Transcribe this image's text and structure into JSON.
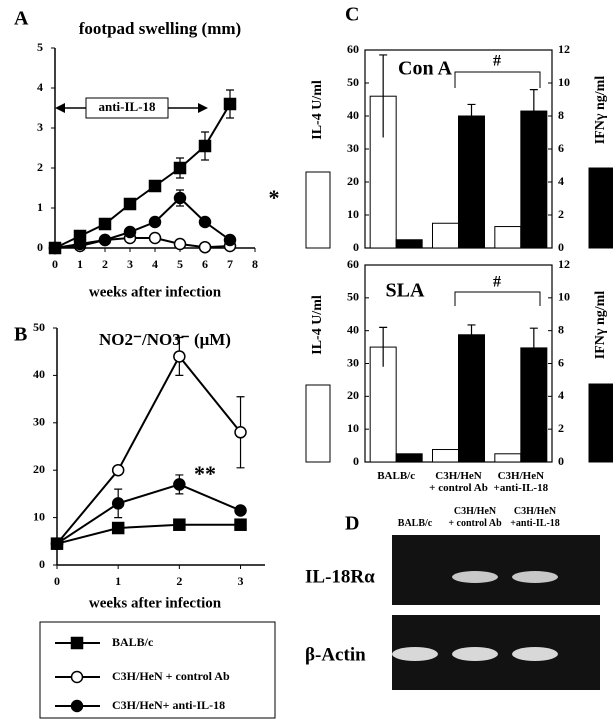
{
  "chart_data": [
    {
      "type": "line",
      "panel": "A",
      "title": "footpad swelling  (mm)",
      "xlabel": "weeks after infection",
      "x": [
        0,
        1,
        2,
        3,
        4,
        5,
        6,
        7
      ],
      "xlim": [
        0,
        8
      ],
      "xticks": [
        0,
        1,
        2,
        3,
        4,
        5,
        6,
        7,
        8
      ],
      "ylim": [
        0,
        5
      ],
      "yticks": [
        0,
        1,
        2,
        3,
        4,
        5
      ],
      "series": [
        {
          "name": "BALB/c",
          "marker": "square",
          "color": "#000000",
          "marker_fill": "#000000",
          "values": [
            0,
            0.3,
            0.6,
            1.1,
            1.55,
            2.0,
            2.55,
            3.6
          ],
          "errors": [
            null,
            null,
            null,
            null,
            null,
            0.25,
            0.35,
            0.35
          ]
        },
        {
          "name": "C3H/HeN + control Ab",
          "marker": "circle",
          "color": "#000000",
          "marker_fill": "#ffffff",
          "values": [
            0,
            0.05,
            0.2,
            0.25,
            0.25,
            0.1,
            0.02,
            0.05
          ]
        },
        {
          "name": "C3H/HeN+ anti-IL-18",
          "marker": "circle",
          "color": "#000000",
          "marker_fill": "#000000",
          "values": [
            0,
            0.1,
            0.2,
            0.4,
            0.65,
            1.25,
            0.65,
            0.2
          ],
          "errors": [
            null,
            null,
            null,
            null,
            null,
            0.2,
            null,
            null
          ]
        }
      ],
      "annotations": [
        "anti-IL-18",
        "*"
      ]
    },
    {
      "type": "line",
      "panel": "B",
      "title": "NO2⁻/NO3⁻ (μM)",
      "xlabel": "weeks after infection",
      "x": [
        0,
        1,
        2,
        3
      ],
      "xlim": [
        0,
        3.4
      ],
      "xticks": [
        0,
        1,
        2,
        3
      ],
      "ylim": [
        0,
        50
      ],
      "yticks": [
        0,
        10,
        20,
        30,
        40,
        50
      ],
      "series": [
        {
          "marker": "square",
          "color": "#000000",
          "marker_fill": "#000000",
          "values": [
            4.5,
            7.8,
            8.5,
            8.5
          ]
        },
        {
          "marker": "circle",
          "color": "#000000",
          "marker_fill": "#ffffff",
          "values": [
            4.5,
            20,
            44,
            28
          ],
          "errors": [
            null,
            null,
            4,
            7.5
          ]
        },
        {
          "marker": "circle",
          "color": "#000000",
          "marker_fill": "#000000",
          "values": [
            4.5,
            13,
            17,
            11.5
          ],
          "errors": [
            null,
            3,
            2,
            null
          ]
        }
      ],
      "annotations": [
        "**"
      ]
    },
    {
      "type": "bar",
      "panel": "C",
      "categories": [
        null,
        null,
        null
      ],
      "ylim": [
        0,
        60
      ],
      "yticks": [
        0,
        10,
        20,
        30,
        40,
        50,
        60
      ],
      "y2lim": [
        0,
        12
      ],
      "y2ticks": [
        0,
        2,
        4,
        6,
        8,
        10,
        12
      ],
      "series": [
        {
          "name": "IL-4 U/ml",
          "color": "#ffffff",
          "values": [
            46,
            7.5,
            6.5
          ],
          "errors": [
            12.5,
            null,
            null
          ]
        },
        {
          "name": "IFNγ ng/ml",
          "color": "#000000",
          "axis": "y2",
          "values": [
            0.5,
            8,
            8.3
          ],
          "errors": [
            null,
            0.7,
            1.3
          ]
        }
      ],
      "annotations": [
        "Con A",
        "#"
      ]
    },
    {
      "type": "bar",
      "categories": [
        "BALB/c",
        "C3H/HeN\n+ control Ab",
        "C3H/HeN\n+anti-IL-18"
      ],
      "ylim": [
        0,
        60
      ],
      "yticks": [
        0,
        10,
        20,
        30,
        40,
        50,
        60
      ],
      "y2lim": [
        0,
        12
      ],
      "y2ticks": [
        0,
        2,
        4,
        6,
        8,
        10,
        12
      ],
      "series": [
        {
          "name": "IL-4 U/ml",
          "color": "#ffffff",
          "values": [
            35,
            3.8,
            2.5
          ],
          "errors": [
            6,
            null,
            null
          ]
        },
        {
          "name": "IFNγ ng/ml",
          "color": "#000000",
          "axis": "y2",
          "values": [
            0.5,
            7.75,
            6.95
          ],
          "errors": [
            null,
            0.6,
            1.2
          ]
        }
      ],
      "annotations": [
        "SLA",
        "#"
      ]
    }
  ],
  "gel": {
    "panel": "D",
    "lanes": [
      "BALB/c",
      "C3H/HeN\n+ control Ab",
      "C3H/HeN\n+anti-IL-18"
    ],
    "rows": [
      "IL-18Rα",
      "β-Actin"
    ]
  }
}
